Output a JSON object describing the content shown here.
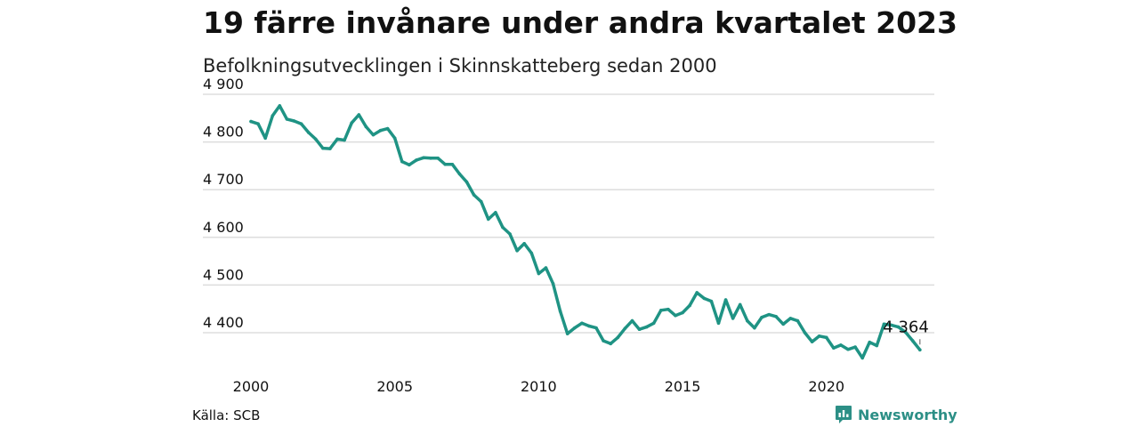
{
  "header": {
    "title": "19 färre invånare under andra kvartalet 2023",
    "subtitle": "Befolkningsutvecklingen i Skinnskatteberg sedan 2000"
  },
  "footer": {
    "source": "Källa: SCB",
    "brand": "Newsworthy",
    "brand_icon": "bar-chart-icon"
  },
  "colors": {
    "line": "#1f9384",
    "grid": "#dddddd",
    "brand": "#2c8f86"
  },
  "chart_data": {
    "type": "line",
    "title": "19 färre invånare under andra kvartalet 2023",
    "subtitle": "Befolkningsutvecklingen i Skinnskatteberg sedan 2000",
    "xlabel": "",
    "ylabel": "",
    "x_ticks": [
      "2000",
      "2005",
      "2010",
      "2015",
      "2020"
    ],
    "y_ticks": [
      4400,
      4500,
      4600,
      4700,
      4800,
      4900
    ],
    "y_tick_labels": [
      "4 400",
      "4 500",
      "4 600",
      "4 700",
      "4 800",
      "4 900"
    ],
    "xlim": [
      2000,
      2023.75
    ],
    "ylim": [
      4330,
      4900
    ],
    "grid": true,
    "frequency": "quarterly",
    "series": [
      {
        "x": [
          2000.0,
          2000.25,
          2000.5,
          2000.75,
          2001.0,
          2001.25,
          2001.5,
          2001.75,
          2002.0,
          2002.25,
          2002.5,
          2002.75,
          2003.0,
          2003.25,
          2003.5,
          2003.75,
          2004.0,
          2004.25,
          2004.5,
          2004.75,
          2005.0,
          2005.25,
          2005.5,
          2005.75,
          2006.0,
          2006.25,
          2006.5,
          2006.75,
          2007.0,
          2007.25,
          2007.5,
          2007.75,
          2008.0,
          2008.25,
          2008.5,
          2008.75,
          2009.0,
          2009.25,
          2009.5,
          2009.75,
          2010.0,
          2010.25,
          2010.5,
          2010.75,
          2011.0,
          2011.25,
          2011.5,
          2011.75,
          2012.0,
          2012.25,
          2012.5,
          2012.75,
          2013.0,
          2013.25,
          2013.5,
          2013.75,
          2014.0,
          2014.25,
          2014.5,
          2014.75,
          2015.0,
          2015.25,
          2015.5,
          2015.75,
          2016.0,
          2016.25,
          2016.5,
          2016.75,
          2017.0,
          2017.25,
          2017.5,
          2017.75,
          2018.0,
          2018.25,
          2018.5,
          2018.75,
          2019.0,
          2019.25,
          2019.5,
          2019.75,
          2020.0,
          2020.25,
          2020.5,
          2020.75,
          2021.0,
          2021.25,
          2021.5,
          2021.75,
          2022.0,
          2022.25,
          2022.5,
          2022.75,
          2023.0,
          2023.25
        ],
        "values": [
          4843,
          4838,
          4808,
          4855,
          4876,
          4848,
          4844,
          4838,
          4820,
          4806,
          4787,
          4786,
          4806,
          4804,
          4840,
          4857,
          4832,
          4815,
          4824,
          4828,
          4808,
          4759,
          4752,
          4762,
          4767,
          4766,
          4766,
          4753,
          4753,
          4733,
          4716,
          4689,
          4675,
          4638,
          4652,
          4621,
          4607,
          4572,
          4587,
          4567,
          4524,
          4536,
          4503,
          4445,
          4398,
          4410,
          4420,
          4414,
          4410,
          4383,
          4377,
          4390,
          4409,
          4425,
          4407,
          4412,
          4420,
          4447,
          4449,
          4436,
          4442,
          4457,
          4484,
          4472,
          4466,
          4420,
          4469,
          4430,
          4459,
          4425,
          4410,
          4432,
          4438,
          4434,
          4418,
          4430,
          4425,
          4400,
          4381,
          4393,
          4390,
          4368,
          4374,
          4365,
          4370,
          4347,
          4380,
          4373,
          4418,
          4416,
          4412,
          4401,
          4383,
          4364
        ]
      }
    ],
    "annotation": {
      "label": "4 364",
      "x": 2023.25,
      "value": 4364
    }
  }
}
